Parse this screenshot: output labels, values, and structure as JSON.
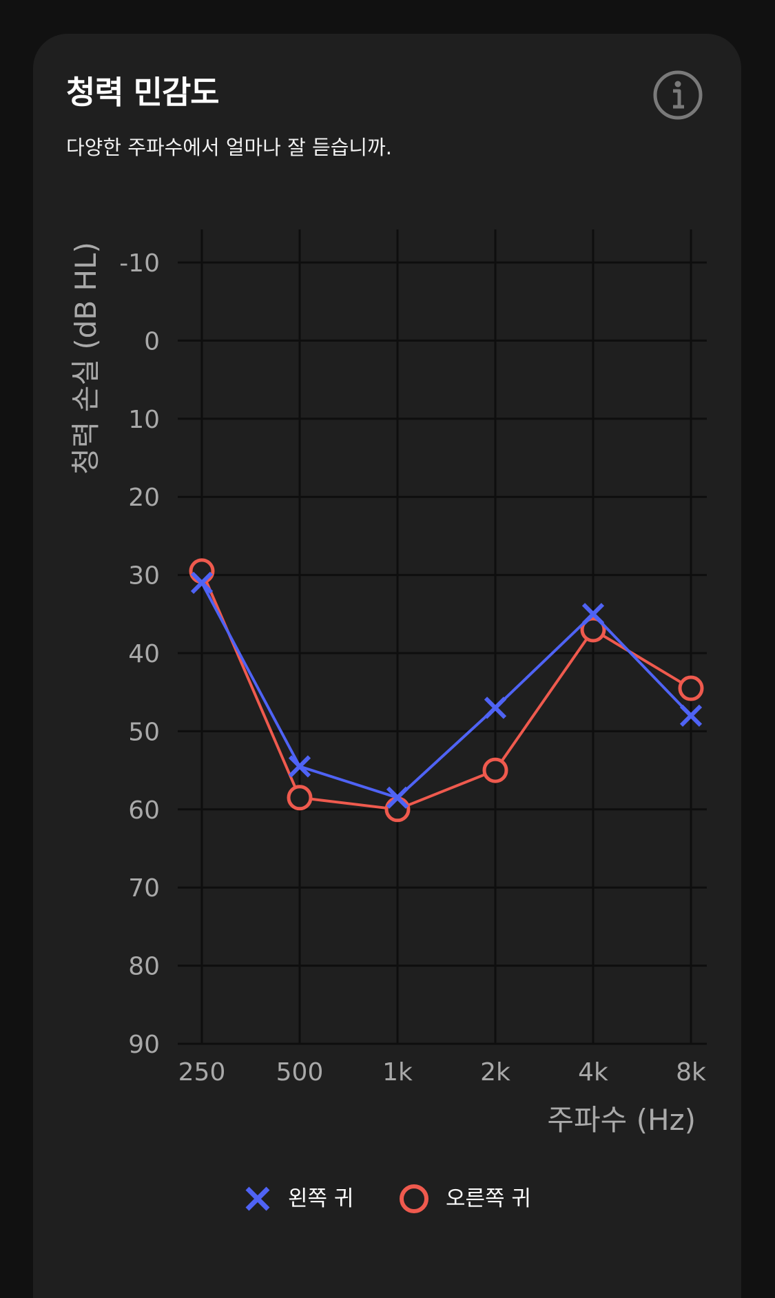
{
  "card": {
    "title": "청력 민감도",
    "subtitle": "다양한 주파수에서 얼마나 잘 듣습니까."
  },
  "icons": {
    "info": "info-icon"
  },
  "colors": {
    "background": "#111111",
    "card": "#1f1f1f",
    "left_ear": "#4f63f5",
    "right_ear": "#ef5a4e",
    "grid": "#0e0e0e",
    "text_muted": "#a9a9a9"
  },
  "chart_data": {
    "type": "line",
    "title": "",
    "xlabel": "주파수 (Hz)",
    "ylabel": "청력 손실 (dB HL)",
    "categories": [
      "250",
      "500",
      "1k",
      "2k",
      "4k",
      "8k"
    ],
    "y_ticks": [
      "-10",
      "0",
      "10",
      "20",
      "30",
      "40",
      "50",
      "60",
      "70",
      "80",
      "90"
    ],
    "ylim": [
      -10,
      90
    ],
    "y_inverted": true,
    "grid": true,
    "legend_position": "bottom-center",
    "series": [
      {
        "name": "왼쪽 귀",
        "marker": "x",
        "color": "#4f63f5",
        "values": [
          31,
          54.5,
          58.5,
          47,
          35,
          48
        ]
      },
      {
        "name": "오른쪽 귀",
        "marker": "o",
        "color": "#ef5a4e",
        "values": [
          29.5,
          58.5,
          60,
          55,
          37,
          44.5
        ]
      }
    ]
  }
}
